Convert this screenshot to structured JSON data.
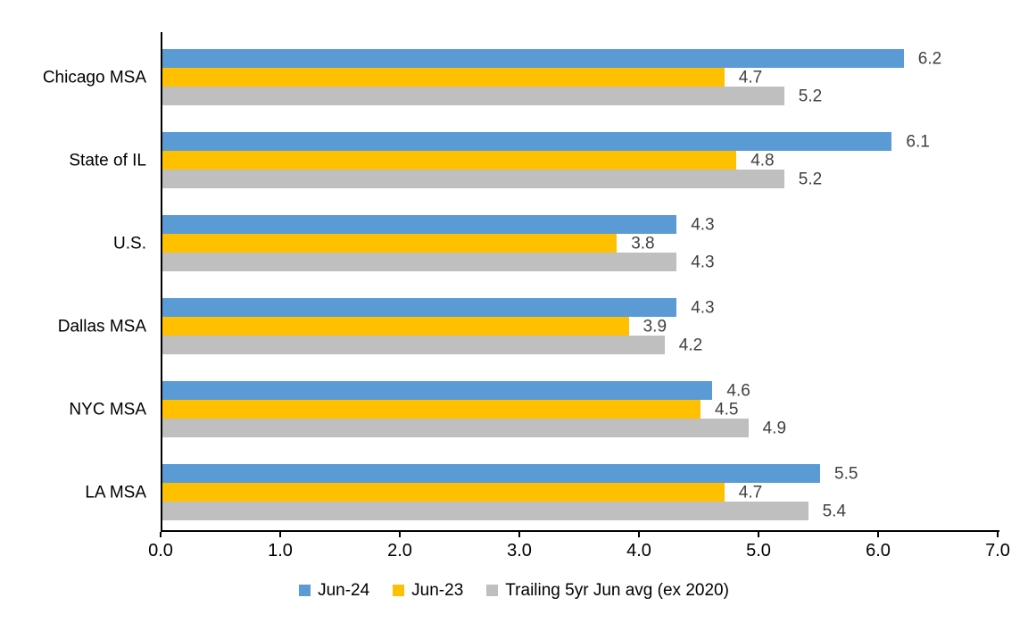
{
  "chart_data": {
    "type": "bar",
    "orientation": "horizontal",
    "title": "",
    "xlabel": "",
    "ylabel": "",
    "xlim": [
      0,
      7
    ],
    "x_ticks": [
      "0.0",
      "1.0",
      "2.0",
      "3.0",
      "4.0",
      "5.0",
      "6.0",
      "7.0"
    ],
    "grid": false,
    "legend_position": "bottom",
    "value_labels_shown": true,
    "categories": [
      "Chicago MSA",
      "State of IL",
      "U.S.",
      "Dallas MSA",
      "NYC MSA",
      "LA MSA"
    ],
    "series": [
      {
        "name": "Jun-24",
        "color": "#5B9BD5",
        "values": [
          6.2,
          6.1,
          4.3,
          4.3,
          4.6,
          5.5
        ]
      },
      {
        "name": "Jun-23",
        "color": "#FFC000",
        "values": [
          4.7,
          4.8,
          3.8,
          3.9,
          4.5,
          4.7
        ]
      },
      {
        "name": "Trailing 5yr Jun avg (ex 2020)",
        "color": "#BFBFBF",
        "values": [
          5.2,
          5.2,
          4.3,
          4.2,
          4.9,
          5.4
        ]
      }
    ],
    "colors": {
      "axis_line": "#000000",
      "tick_label": "#000000",
      "category_label": "#000000",
      "value_label": "#404040",
      "background": "#FFFFFF"
    }
  }
}
